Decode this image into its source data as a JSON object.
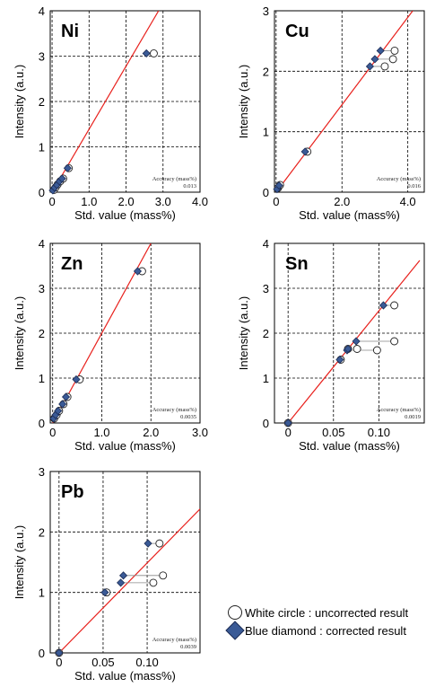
{
  "chart_data": [
    {
      "type": "scatter",
      "element": "Ni",
      "xlabel": "Std. value (mass%)",
      "ylabel": "Intensity (a.u.)",
      "xlim": [
        -0.05,
        4.0
      ],
      "ylim": [
        0,
        4
      ],
      "xticks": [
        "0",
        "1.0",
        "2.0",
        "3.0",
        "4.0"
      ],
      "xtick_values": [
        0,
        1,
        2,
        3,
        4
      ],
      "yticks": [
        "0",
        "1",
        "2",
        "3",
        "4"
      ],
      "ytick_values": [
        0,
        1,
        2,
        3,
        4
      ],
      "accuracy_label": "Accuracy  (mass%)",
      "accuracy_value": "0.013",
      "fit_line": [
        [
          0,
          0
        ],
        [
          2.88,
          4.0
        ]
      ],
      "series": [
        {
          "name": "White circle : uncorrected result",
          "marker": "circle",
          "points": [
            [
              0.05,
              0.05
            ],
            [
              0.1,
              0.11
            ],
            [
              0.15,
              0.17
            ],
            [
              0.22,
              0.24
            ],
            [
              0.3,
              0.3
            ],
            [
              0.45,
              0.53
            ],
            [
              2.75,
              3.06
            ]
          ]
        },
        {
          "name": "Blue diamond : corrected result",
          "marker": "diamond",
          "points": [
            [
              0.02,
              0.04
            ],
            [
              0.07,
              0.1
            ],
            [
              0.13,
              0.16
            ],
            [
              0.2,
              0.24
            ],
            [
              0.27,
              0.3
            ],
            [
              0.42,
              0.53
            ],
            [
              2.55,
              3.06
            ]
          ]
        }
      ],
      "ties": []
    },
    {
      "type": "scatter",
      "element": "Cu",
      "xlabel": "Std. value (mass%)",
      "ylabel": "Intensity (a.u.)",
      "xlim": [
        -0.05,
        4.5
      ],
      "ylim": [
        0,
        3
      ],
      "xticks": [
        "0",
        "2.0",
        "4.0"
      ],
      "xtick_values": [
        0,
        2,
        4
      ],
      "yticks": [
        "0",
        "1",
        "2",
        "3"
      ],
      "ytick_values": [
        0,
        1,
        2,
        3
      ],
      "accuracy_label": "Accuracy  (mass%)",
      "accuracy_value": "0.016",
      "fit_line": [
        [
          0,
          0
        ],
        [
          4.15,
          3.0
        ]
      ],
      "series": [
        {
          "name": "White circle : uncorrected result",
          "marker": "circle",
          "points": [
            [
              0.06,
              0.07
            ],
            [
              0.12,
              0.12
            ],
            [
              0.95,
              0.67
            ],
            [
              3.3,
              2.08
            ],
            [
              3.55,
              2.2
            ],
            [
              3.6,
              2.34
            ]
          ]
        },
        {
          "name": "Blue diamond : corrected result",
          "marker": "diamond",
          "points": [
            [
              0.03,
              0.05
            ],
            [
              0.09,
              0.11
            ],
            [
              0.88,
              0.67
            ],
            [
              2.85,
              2.08
            ],
            [
              3.0,
              2.2
            ],
            [
              3.17,
              2.34
            ]
          ]
        }
      ],
      "ties": [
        [
          [
            2.85,
            2.08
          ],
          [
            3.3,
            2.08
          ]
        ],
        [
          [
            3.0,
            2.2
          ],
          [
            3.55,
            2.2
          ]
        ],
        [
          [
            3.17,
            2.34
          ],
          [
            3.6,
            2.34
          ]
        ]
      ]
    },
    {
      "type": "scatter",
      "element": "Zn",
      "xlabel": "Std. value (mass%)",
      "ylabel": "Intensity (a.u.)",
      "xlim": [
        -0.05,
        3.0
      ],
      "ylim": [
        0,
        4
      ],
      "xticks": [
        "0",
        "1.0",
        "2.0",
        "3.0"
      ],
      "xtick_values": [
        0,
        1,
        2,
        3
      ],
      "yticks": [
        "0",
        "1",
        "2",
        "3",
        "4"
      ],
      "ytick_values": [
        0,
        1,
        2,
        3,
        4
      ],
      "accuracy_label": "Accuracy  (mass%)",
      "accuracy_value": "0.0035",
      "fit_line": [
        [
          0,
          0
        ],
        [
          2.0,
          4.0
        ]
      ],
      "series": [
        {
          "name": "White circle : uncorrected result",
          "marker": "circle",
          "points": [
            [
              0.03,
              0.1
            ],
            [
              0.08,
              0.18
            ],
            [
              0.13,
              0.27
            ],
            [
              0.22,
              0.42
            ],
            [
              0.3,
              0.58
            ],
            [
              0.55,
              0.97
            ],
            [
              1.82,
              3.38
            ]
          ]
        },
        {
          "name": "Blue diamond : corrected result",
          "marker": "diamond",
          "points": [
            [
              0.02,
              0.1
            ],
            [
              0.06,
              0.18
            ],
            [
              0.11,
              0.27
            ],
            [
              0.2,
              0.42
            ],
            [
              0.27,
              0.58
            ],
            [
              0.48,
              0.97
            ],
            [
              1.73,
              3.38
            ]
          ]
        }
      ],
      "ties": []
    },
    {
      "type": "scatter",
      "element": "Sn",
      "xlabel": "Std. value (mass%)",
      "ylabel": "Intensity (a.u.)",
      "xlim": [
        -0.015,
        0.15
      ],
      "ylim": [
        0,
        4
      ],
      "xticks": [
        "0",
        "0.05",
        "0.10"
      ],
      "xtick_values": [
        0,
        0.05,
        0.1
      ],
      "yticks": [
        "0",
        "1",
        "2",
        "3",
        "4"
      ],
      "ytick_values": [
        0,
        1,
        2,
        3,
        4
      ],
      "accuracy_label": "Accuracy  (mass%)",
      "accuracy_value": "0.0019",
      "fit_line": [
        [
          0,
          0
        ],
        [
          0.145,
          3.62
        ]
      ],
      "series": [
        {
          "name": "White circle : uncorrected result",
          "marker": "circle",
          "points": [
            [
              0,
              0
            ],
            [
              0.058,
              1.41
            ],
            [
              0.066,
              1.65
            ],
            [
              0.076,
              1.65
            ],
            [
              0.098,
              1.62
            ],
            [
              0.117,
              1.82
            ],
            [
              0.117,
              2.62
            ]
          ]
        },
        {
          "name": "Blue diamond : corrected result",
          "marker": "diamond",
          "points": [
            [
              0,
              0
            ],
            [
              0.057,
              1.41
            ],
            [
              0.065,
              1.62
            ],
            [
              0.066,
              1.65
            ],
            [
              0.075,
              1.82
            ],
            [
              0.105,
              2.62
            ]
          ]
        }
      ],
      "ties": [
        [
          [
            0.075,
            1.82
          ],
          [
            0.117,
            1.82
          ]
        ],
        [
          [
            0.105,
            2.62
          ],
          [
            0.117,
            2.62
          ]
        ],
        [
          [
            0.065,
            1.62
          ],
          [
            0.098,
            1.62
          ]
        ]
      ]
    },
    {
      "type": "scatter",
      "element": "Pb",
      "xlabel": "Std. value (mass%)",
      "ylabel": "Intensity (a.u.)",
      "xlim": [
        -0.01,
        0.16
      ],
      "ylim": [
        0,
        3
      ],
      "xticks": [
        "0",
        "0.05",
        "0.10"
      ],
      "xtick_values": [
        0,
        0.05,
        0.1
      ],
      "yticks": [
        "0",
        "1",
        "2",
        "3"
      ],
      "ytick_values": [
        0,
        1,
        2,
        3
      ],
      "accuracy_label": "Accuracy  (mass%)",
      "accuracy_value": "0.0039",
      "fit_line": [
        [
          0,
          0
        ],
        [
          0.16,
          2.38
        ]
      ],
      "series": [
        {
          "name": "White circle : uncorrected result",
          "marker": "circle",
          "points": [
            [
              0,
              0
            ],
            [
              0.054,
              1.0
            ],
            [
              0.107,
              1.16
            ],
            [
              0.118,
              1.28
            ],
            [
              0.114,
              1.81
            ]
          ]
        },
        {
          "name": "Blue diamond : corrected result",
          "marker": "diamond",
          "points": [
            [
              0,
              0
            ],
            [
              0.052,
              1.0
            ],
            [
              0.07,
              1.16
            ],
            [
              0.073,
              1.28
            ],
            [
              0.101,
              1.81
            ]
          ]
        }
      ],
      "ties": [
        [
          [
            0.07,
            1.16
          ],
          [
            0.107,
            1.16
          ]
        ],
        [
          [
            0.073,
            1.28
          ],
          [
            0.118,
            1.28
          ]
        ],
        [
          [
            0.101,
            1.81
          ],
          [
            0.114,
            1.81
          ]
        ]
      ]
    }
  ],
  "legend": {
    "uncorrected": "White circle : uncorrected result",
    "corrected": "Blue diamond : corrected result"
  },
  "colors": {
    "fit_line": "#e8201c",
    "diamond_fill": "#3a5a96",
    "diamond_stroke": "#1c2c55",
    "circle_fill": "#ffffff",
    "grid": "#000000"
  }
}
